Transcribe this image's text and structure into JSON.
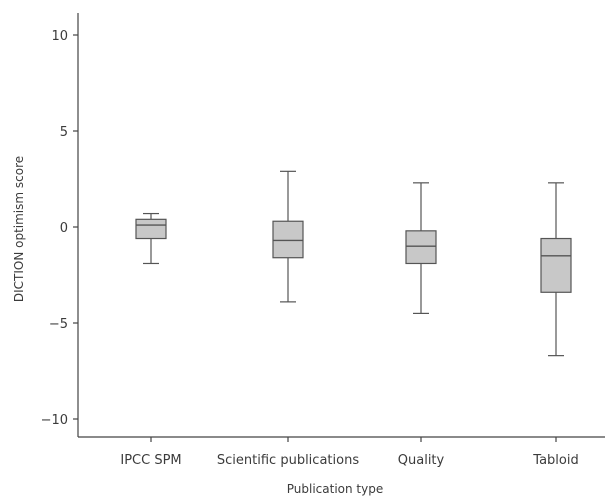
{
  "chart_data": {
    "type": "boxplot",
    "title": "",
    "xlabel": "Publication type",
    "ylabel": "DICTION optimism score",
    "ylim": [
      -11,
      11
    ],
    "yticks": [
      10,
      5,
      0,
      -5,
      -10
    ],
    "ytick_labels": [
      "10",
      "5",
      "0",
      "−5",
      "−10"
    ],
    "grid": false,
    "legend": "none",
    "colors": {
      "box_fill": "#c8c8c8",
      "stroke": "#555555",
      "axis": "#444444"
    },
    "categories": [
      "IPCC SPM",
      "Scientific publications",
      "Quality",
      "Tabloid"
    ],
    "boxes": [
      {
        "label": "IPCC SPM",
        "min": -1.9,
        "q1": -0.6,
        "median": 0.1,
        "q3": 0.4,
        "max": 0.7
      },
      {
        "label": "Scientific publications",
        "min": -3.9,
        "q1": -1.6,
        "median": -0.7,
        "q3": 0.3,
        "max": 2.9
      },
      {
        "label": "Quality",
        "min": -4.5,
        "q1": -1.9,
        "median": -1.0,
        "q3": -0.2,
        "max": 2.3
      },
      {
        "label": "Tabloid",
        "min": -6.7,
        "q1": -3.4,
        "median": -1.5,
        "q3": -0.6,
        "max": 2.3
      }
    ]
  }
}
